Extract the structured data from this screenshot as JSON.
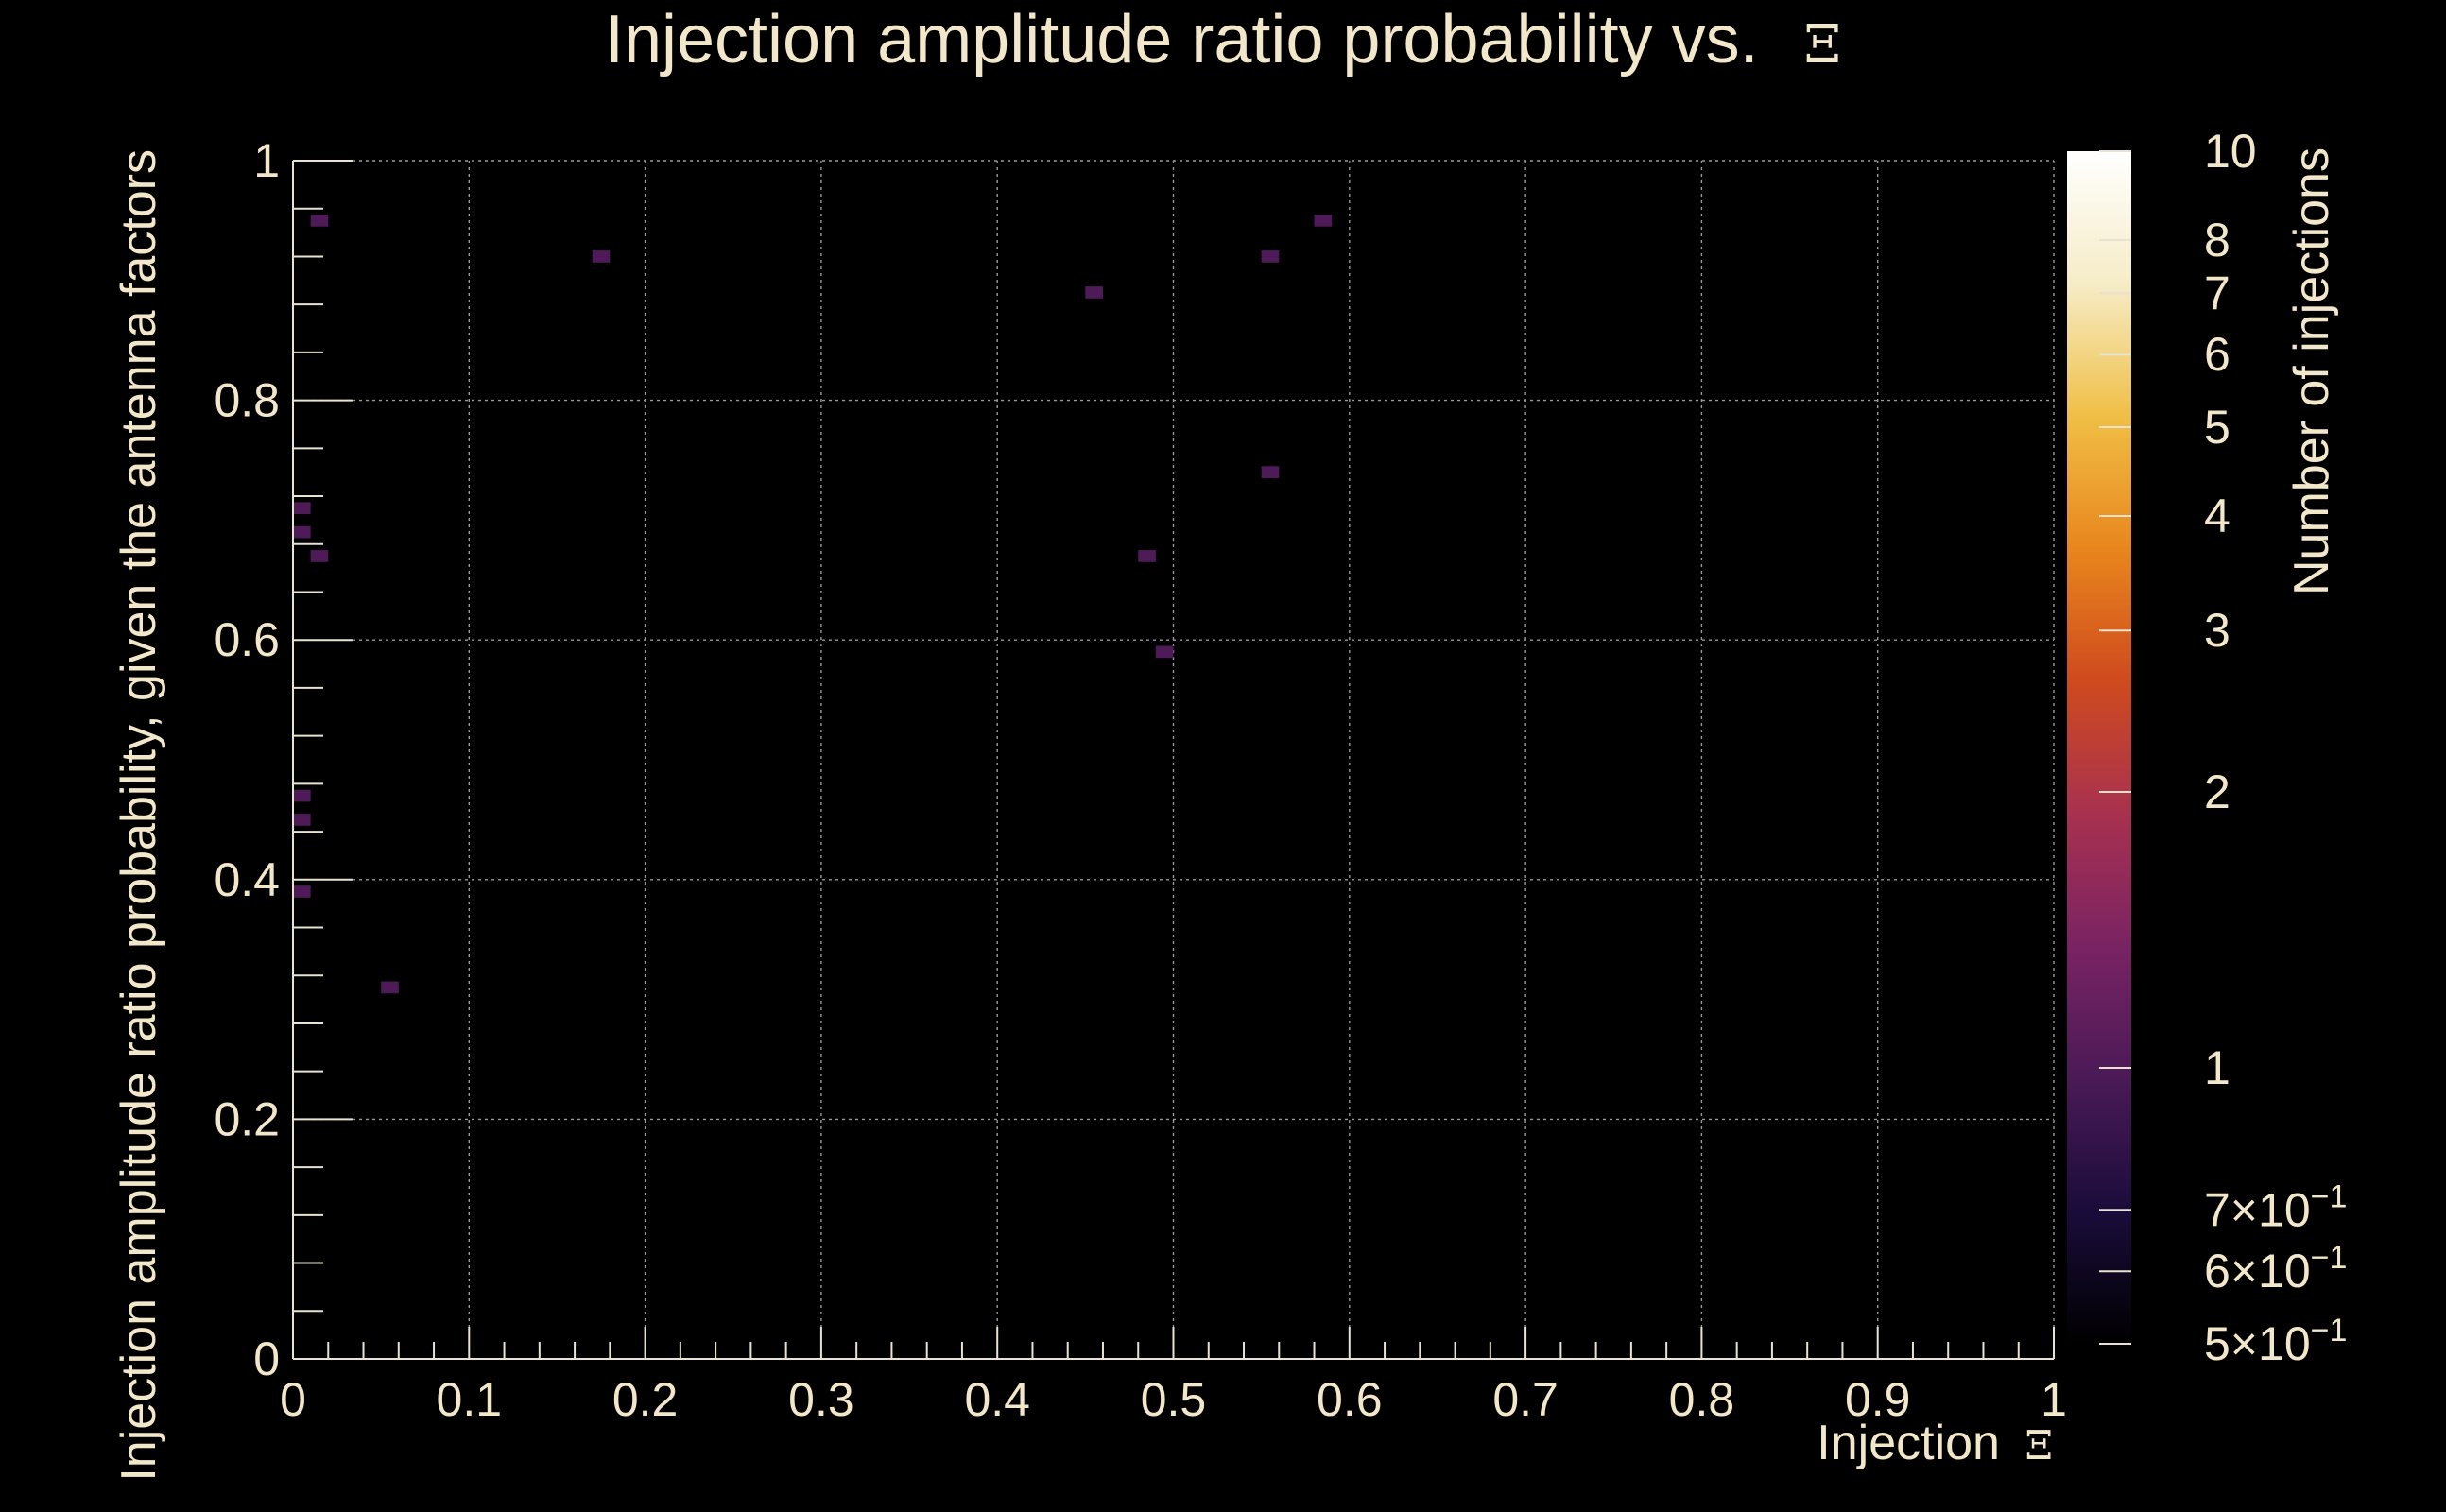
{
  "chart_data": {
    "type": "heatmap",
    "title": "Injection amplitude ratio probability vs.",
    "title_symbol": "Ξ",
    "xlabel": "Injection",
    "xlabel_symbol": "Ξ",
    "ylabel": "Injection amplitude ratio probability, given the antenna factors",
    "colorbar_label": "Number of injections",
    "xlim": [
      0,
      1
    ],
    "ylim": [
      0,
      1
    ],
    "x_ticks": [
      "0",
      "0.1",
      "0.2",
      "0.3",
      "0.4",
      "0.5",
      "0.6",
      "0.7",
      "0.8",
      "0.9",
      "1"
    ],
    "y_ticks": [
      "0",
      "0.2",
      "0.4",
      "0.6",
      "0.8",
      "1"
    ],
    "grid": true,
    "colorbar": {
      "scale": "log",
      "range": [
        0.5,
        10
      ],
      "ticks": [
        {
          "value": 10,
          "label": "10"
        },
        {
          "value": 8,
          "label": "8"
        },
        {
          "value": 7,
          "label": "7"
        },
        {
          "value": 6,
          "label": "6"
        },
        {
          "value": 5,
          "label": "5"
        },
        {
          "value": 4,
          "label": "4"
        },
        {
          "value": 3,
          "label": "3"
        },
        {
          "value": 2,
          "label": "2"
        },
        {
          "value": 1,
          "label": "1"
        },
        {
          "value": 0.7,
          "label": "7×10",
          "exp": "−1"
        },
        {
          "value": 0.6,
          "label": "6×10",
          "exp": "−1"
        },
        {
          "value": 0.5,
          "label": "5×10",
          "exp": "−1"
        }
      ],
      "colors": [
        "#000000",
        "#1a0c3a",
        "#4a1a57",
        "#7a2363",
        "#a8314f",
        "#cf4a1e",
        "#e8861c",
        "#f0bf46",
        "#f6ecc7",
        "#ffffff"
      ]
    },
    "bin_size": {
      "dx": 0.01,
      "dy": 0.02
    },
    "cells": [
      {
        "x": 0.015,
        "y": 0.95,
        "count": 1
      },
      {
        "x": 0.175,
        "y": 0.92,
        "count": 1
      },
      {
        "x": 0.455,
        "y": 0.89,
        "count": 1
      },
      {
        "x": 0.555,
        "y": 0.92,
        "count": 1
      },
      {
        "x": 0.585,
        "y": 0.95,
        "count": 1
      },
      {
        "x": 0.005,
        "y": 0.71,
        "count": 1
      },
      {
        "x": 0.005,
        "y": 0.69,
        "count": 1
      },
      {
        "x": 0.015,
        "y": 0.67,
        "count": 1
      },
      {
        "x": 0.555,
        "y": 0.74,
        "count": 1
      },
      {
        "x": 0.485,
        "y": 0.67,
        "count": 1
      },
      {
        "x": 0.495,
        "y": 0.59,
        "count": 1
      },
      {
        "x": 0.005,
        "y": 0.47,
        "count": 1
      },
      {
        "x": 0.005,
        "y": 0.45,
        "count": 1
      },
      {
        "x": 0.005,
        "y": 0.39,
        "count": 1
      },
      {
        "x": 0.055,
        "y": 0.31,
        "count": 1
      }
    ]
  }
}
